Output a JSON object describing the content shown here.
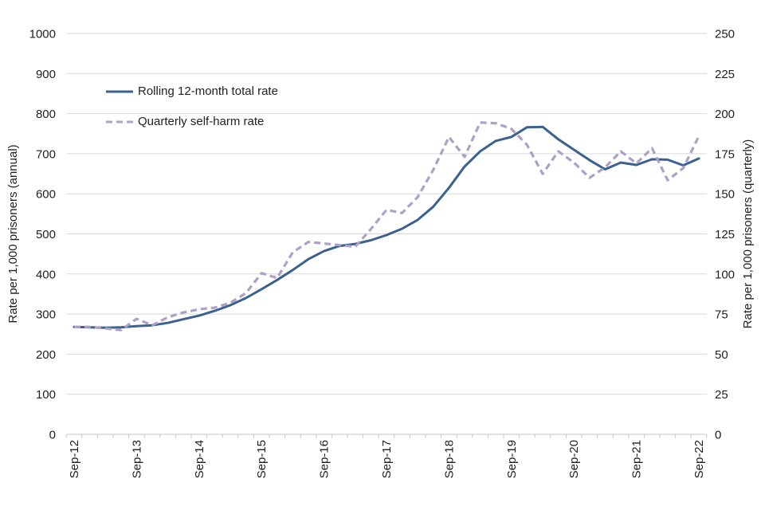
{
  "chart_data": {
    "type": "line",
    "title": "",
    "x_categories": [
      "Sep-12",
      "Dec-12",
      "Mar-13",
      "Jun-13",
      "Sep-13",
      "Dec-13",
      "Mar-14",
      "Jun-14",
      "Sep-14",
      "Dec-14",
      "Mar-15",
      "Jun-15",
      "Sep-15",
      "Dec-15",
      "Mar-16",
      "Jun-16",
      "Sep-16",
      "Dec-16",
      "Mar-17",
      "Jun-17",
      "Sep-17",
      "Dec-17",
      "Mar-18",
      "Jun-18",
      "Sep-18",
      "Dec-18",
      "Mar-19",
      "Jun-19",
      "Sep-19",
      "Dec-19",
      "Mar-20",
      "Jun-20",
      "Sep-20",
      "Dec-20",
      "Mar-21",
      "Jun-21",
      "Sep-21",
      "Dec-21",
      "Mar-22",
      "Jun-22",
      "Sep-22"
    ],
    "x_tick_labels_shown": [
      "Sep-12",
      "Sep-13",
      "Sep-14",
      "Sep-15",
      "Sep-16",
      "Sep-17",
      "Sep-18",
      "Sep-19",
      "Sep-20",
      "Sep-21",
      "Sep-22"
    ],
    "left_axis": {
      "label": "Rate per 1,000 prisoners (annual)",
      "min": 0,
      "max": 1000,
      "step": 100,
      "ticks": [
        0,
        100,
        200,
        300,
        400,
        500,
        600,
        700,
        800,
        900,
        1000
      ]
    },
    "right_axis": {
      "label": "Rate per 1,000 prisoners (quarterly)",
      "min": 0,
      "max": 250,
      "step": 25,
      "ticks": [
        0,
        25,
        50,
        75,
        100,
        125,
        150,
        175,
        200,
        225,
        250
      ]
    },
    "grid": true,
    "legend_position": "top-left-inside",
    "series": [
      {
        "name": "Rolling 12-month total rate",
        "axis": "left",
        "style": "solid",
        "color": "#3b618e",
        "values": [
          268,
          267,
          266,
          267,
          270,
          272,
          278,
          287,
          296,
          308,
          322,
          340,
          362,
          385,
          410,
          437,
          457,
          470,
          475,
          484,
          497,
          513,
          535,
          568,
          615,
          668,
          706,
          732,
          742,
          766,
          767,
          736,
          710,
          684,
          661,
          678,
          672,
          686,
          685,
          671,
          688
        ]
      },
      {
        "name": "Quarterly self-harm rate",
        "axis": "right",
        "style": "dashed",
        "color": "#ada0c9",
        "values": [
          67,
          67,
          66,
          65,
          72,
          68,
          73,
          76,
          78,
          79,
          82,
          88,
          100.5,
          97.5,
          113.5,
          120,
          119,
          118,
          117,
          128,
          140,
          138,
          148,
          165,
          185.5,
          173,
          194.5,
          194,
          190.5,
          180.5,
          162.5,
          176.5,
          169.5,
          160,
          166.5,
          176.5,
          169,
          178.5,
          158.5,
          166,
          186
        ]
      }
    ],
    "colors": {
      "grid_line": "#d9d9d9",
      "axis_line": "#c6c6c6",
      "text": "#212121",
      "background": "#ffffff"
    }
  }
}
